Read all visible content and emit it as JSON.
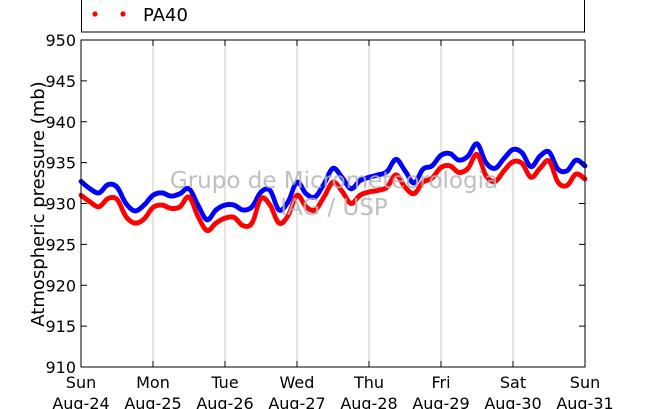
{
  "chart_data": {
    "type": "scatter",
    "title": "",
    "xlabel": "",
    "ylabel": "Atmospheric pressure (mb)",
    "ylim": [
      910,
      950
    ],
    "yticks": [
      "910",
      "915",
      "920",
      "925",
      "930",
      "935",
      "940",
      "945",
      "950"
    ],
    "xlim": [
      "2014-08-24",
      "2014-08-31"
    ],
    "x_ticks": [
      {
        "day": "Sun",
        "date": "Aug-24"
      },
      {
        "day": "Mon",
        "date": "Aug-25"
      },
      {
        "day": "Tue",
        "date": "Aug-26"
      },
      {
        "day": "Wed",
        "date": "Aug-27"
      },
      {
        "day": "Thu",
        "date": "Aug-28"
      },
      {
        "day": "Fri",
        "date": "Aug-29"
      },
      {
        "day": "Sat",
        "date": "Aug-30"
      },
      {
        "day": "Sun",
        "date": "Aug-31"
      }
    ],
    "grid": "vertical",
    "legend": {
      "placement": "top",
      "entries": [
        "PA40"
      ]
    },
    "watermark": [
      "Grupo de Micrometeorologia",
      "IAG / USP"
    ],
    "series": [
      {
        "name": "",
        "color": "#0000ff",
        "x": [
          "2014-08-24 00:00",
          "2014-08-24 03:00",
          "2014-08-24 06:00",
          "2014-08-24 09:00",
          "2014-08-24 12:00",
          "2014-08-24 15:00",
          "2014-08-24 18:00",
          "2014-08-24 21:00",
          "2014-08-25 00:00",
          "2014-08-25 03:00",
          "2014-08-25 06:00",
          "2014-08-25 09:00",
          "2014-08-25 12:00",
          "2014-08-25 15:00",
          "2014-08-25 18:00",
          "2014-08-25 21:00",
          "2014-08-26 00:00",
          "2014-08-26 03:00",
          "2014-08-26 06:00",
          "2014-08-26 09:00",
          "2014-08-26 12:00",
          "2014-08-26 15:00",
          "2014-08-26 18:00",
          "2014-08-26 21:00",
          "2014-08-27 00:00",
          "2014-08-27 03:00",
          "2014-08-27 06:00",
          "2014-08-27 09:00",
          "2014-08-27 12:00",
          "2014-08-27 15:00",
          "2014-08-27 18:00",
          "2014-08-27 21:00",
          "2014-08-28 00:00",
          "2014-08-28 03:00",
          "2014-08-28 06:00",
          "2014-08-28 09:00",
          "2014-08-28 12:00",
          "2014-08-28 15:00",
          "2014-08-28 18:00",
          "2014-08-28 21:00",
          "2014-08-29 00:00",
          "2014-08-29 03:00",
          "2014-08-29 06:00",
          "2014-08-29 09:00",
          "2014-08-29 12:00",
          "2014-08-29 15:00",
          "2014-08-29 18:00",
          "2014-08-29 21:00",
          "2014-08-30 00:00",
          "2014-08-30 03:00",
          "2014-08-30 06:00",
          "2014-08-30 09:00",
          "2014-08-30 12:00",
          "2014-08-30 15:00",
          "2014-08-30 18:00",
          "2014-08-30 21:00",
          "2014-08-31 00:00"
        ],
        "y": [
          932.7,
          931.8,
          931.3,
          932.3,
          932.0,
          930.0,
          929.1,
          929.8,
          931.0,
          931.3,
          930.9,
          931.2,
          931.8,
          929.8,
          928.0,
          929.2,
          929.8,
          929.8,
          929.2,
          929.6,
          931.4,
          931.6,
          929.2,
          930.2,
          932.6,
          931.2,
          930.8,
          932.4,
          934.3,
          933.2,
          931.8,
          932.8,
          933.2,
          933.5,
          933.9,
          935.4,
          934.0,
          932.5,
          934.2,
          934.6,
          935.9,
          936.1,
          935.3,
          935.8,
          937.3,
          935.0,
          934.3,
          935.5,
          936.6,
          936.2,
          934.5,
          935.8,
          936.3,
          934.2,
          934.0,
          935.3,
          934.6
        ]
      },
      {
        "name": "PA40",
        "color": "#ff0000",
        "x": [
          "2014-08-24 00:00",
          "2014-08-24 03:00",
          "2014-08-24 06:00",
          "2014-08-24 09:00",
          "2014-08-24 12:00",
          "2014-08-24 15:00",
          "2014-08-24 18:00",
          "2014-08-24 21:00",
          "2014-08-25 00:00",
          "2014-08-25 03:00",
          "2014-08-25 06:00",
          "2014-08-25 09:00",
          "2014-08-25 12:00",
          "2014-08-25 15:00",
          "2014-08-25 18:00",
          "2014-08-25 21:00",
          "2014-08-26 00:00",
          "2014-08-26 03:00",
          "2014-08-26 06:00",
          "2014-08-26 09:00",
          "2014-08-26 12:00",
          "2014-08-26 15:00",
          "2014-08-26 18:00",
          "2014-08-26 21:00",
          "2014-08-27 00:00",
          "2014-08-27 03:00",
          "2014-08-27 06:00",
          "2014-08-27 09:00",
          "2014-08-27 12:00",
          "2014-08-27 15:00",
          "2014-08-27 18:00",
          "2014-08-27 21:00",
          "2014-08-28 00:00",
          "2014-08-28 03:00",
          "2014-08-28 06:00",
          "2014-08-28 09:00",
          "2014-08-28 12:00",
          "2014-08-28 15:00",
          "2014-08-28 18:00",
          "2014-08-28 21:00",
          "2014-08-29 00:00",
          "2014-08-29 03:00",
          "2014-08-29 06:00",
          "2014-08-29 09:00",
          "2014-08-29 12:00",
          "2014-08-29 15:00",
          "2014-08-29 18:00",
          "2014-08-29 21:00",
          "2014-08-30 00:00",
          "2014-08-30 03:00",
          "2014-08-30 06:00",
          "2014-08-30 09:00",
          "2014-08-30 12:00",
          "2014-08-30 15:00",
          "2014-08-30 18:00",
          "2014-08-30 21:00",
          "2014-08-31 00:00"
        ],
        "y": [
          931.0,
          930.2,
          929.6,
          930.6,
          930.5,
          928.4,
          927.6,
          928.1,
          929.5,
          929.8,
          929.4,
          929.6,
          930.8,
          928.4,
          926.7,
          927.6,
          928.2,
          928.3,
          927.3,
          927.6,
          930.6,
          929.8,
          927.6,
          928.5,
          931.0,
          929.6,
          929.2,
          930.8,
          932.6,
          931.5,
          930.0,
          931.0,
          931.4,
          931.6,
          932.0,
          933.5,
          932.0,
          931.2,
          932.6,
          933.1,
          934.4,
          934.6,
          933.8,
          934.3,
          936.0,
          933.4,
          932.7,
          934.0,
          935.1,
          934.9,
          933.2,
          934.3,
          935.2,
          932.6,
          932.2,
          933.6,
          933.0
        ]
      }
    ]
  }
}
